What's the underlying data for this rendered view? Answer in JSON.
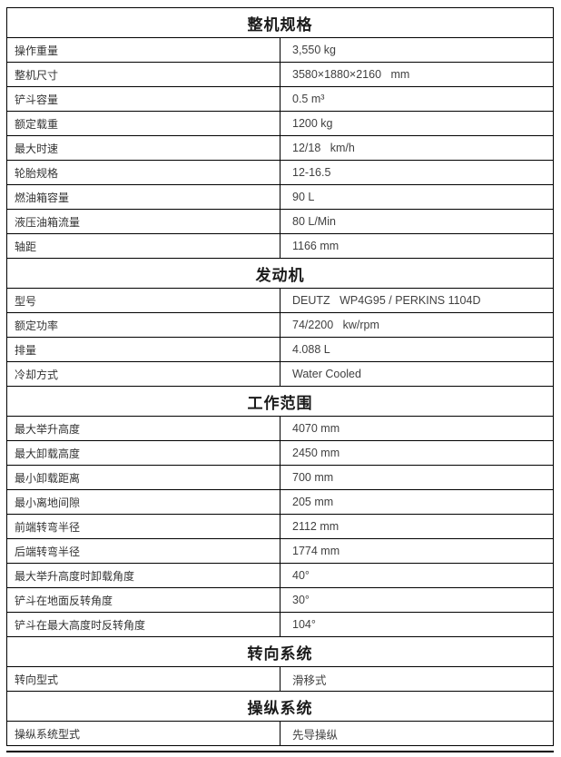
{
  "page": {
    "background": "#ffffff",
    "border_color": "#000000",
    "header_text_color": "#1a1a1a",
    "label_text_color": "#333333",
    "value_text_color": "#404040"
  },
  "table": {
    "sections": [
      {
        "title": "整机规格",
        "rows": [
          {
            "label": "操作重量",
            "value": "3,550 kg"
          },
          {
            "label": "整机尺寸",
            "value": "3580×1880×2160   mm"
          },
          {
            "label": "铲斗容量",
            "value": "0.5 m³"
          },
          {
            "label": "额定载重",
            "value": "1200 kg"
          },
          {
            "label": "最大时速",
            "value": "12/18   km/h"
          },
          {
            "label": "轮胎规格",
            "value": "12-16.5"
          },
          {
            "label": "燃油箱容量",
            "value": "90 L"
          },
          {
            "label": "液压油箱流量",
            "value": "80 L/Min"
          },
          {
            "label": "轴距",
            "value": "1166 mm"
          }
        ]
      },
      {
        "title": "发动机",
        "rows": [
          {
            "label": "型号",
            "value": "DEUTZ   WP4G95 / PERKINS 1104D"
          },
          {
            "label": "额定功率",
            "value": "74/2200   kw/rpm"
          },
          {
            "label": "排量",
            "value": "4.088 L"
          },
          {
            "label": "冷却方式",
            "value": "Water Cooled"
          }
        ]
      },
      {
        "title": "工作范围",
        "rows": [
          {
            "label": "最大举升高度",
            "value": "4070 mm"
          },
          {
            "label": "最大卸载高度",
            "value": "2450 mm"
          },
          {
            "label": "最小卸载距离",
            "value": "700 mm"
          },
          {
            "label": "最小离地间隙",
            "value": "205 mm"
          },
          {
            "label": "前端转弯半径",
            "value": "2112 mm"
          },
          {
            "label": "后端转弯半径",
            "value": "1774 mm"
          },
          {
            "label": "最大举升高度时卸载角度",
            "value": "40°"
          },
          {
            "label": "铲斗在地面反转角度",
            "value": "30°"
          },
          {
            "label": "铲斗在最大高度时反转角度",
            "value": "104°"
          }
        ]
      },
      {
        "title": "转向系统",
        "rows": [
          {
            "label": "转向型式",
            "value": "滑移式"
          }
        ]
      },
      {
        "title": "操纵系统",
        "rows": [
          {
            "label": "操纵系统型式",
            "value": "先导操纵"
          }
        ]
      }
    ]
  }
}
